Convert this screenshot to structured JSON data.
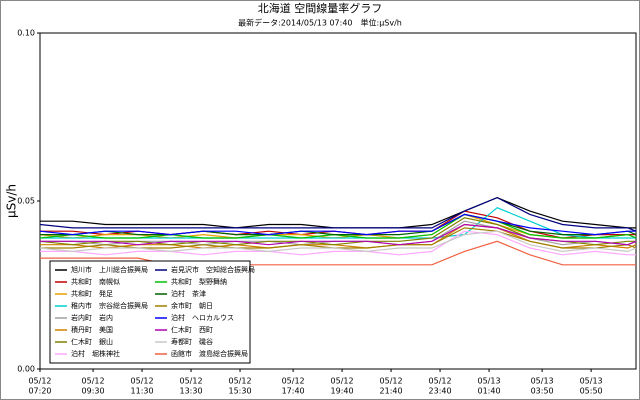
{
  "chart_data": {
    "type": "line",
    "title": "北海道 空間線量率グラフ",
    "subtitle": "最新データ:2014/05/13 07:40　単位:μSv/h",
    "y_label": "μSv/h",
    "x": [
      "05/12 07:20",
      "05/12 08:40",
      "05/12 10:00",
      "05/12 11:20",
      "05/12 12:40",
      "05/12 14:00",
      "05/12 15:20",
      "05/12 16:40",
      "05/12 18:00",
      "05/12 19:20",
      "05/12 20:40",
      "05/12 22:00",
      "05/12 23:20",
      "05/13 00:40",
      "05/13 02:00",
      "05/13 03:20",
      "05/13 04:40",
      "05/13 06:00",
      "05/13 07:20",
      "05/13 07:40"
    ],
    "xticks": [
      {
        "date": "05/12",
        "time": "07:20"
      },
      {
        "date": "05/12",
        "time": "09:30"
      },
      {
        "date": "05/12",
        "time": "11:30"
      },
      {
        "date": "05/12",
        "time": "13:30"
      },
      {
        "date": "05/12",
        "time": "15:30"
      },
      {
        "date": "05/12",
        "time": "17:40"
      },
      {
        "date": "05/12",
        "time": "19:40"
      },
      {
        "date": "05/12",
        "time": "21:40"
      },
      {
        "date": "05/12",
        "time": "23:40"
      },
      {
        "date": "05/13",
        "time": "01:40"
      },
      {
        "date": "05/13",
        "time": "03:50"
      },
      {
        "date": "05/13",
        "time": "05:50"
      }
    ],
    "ylim": [
      0,
      0.1
    ],
    "yticks": [
      {
        "value": 0,
        "label": "0.00"
      },
      {
        "value": 0.05,
        "label": "0.05"
      },
      {
        "value": 0.1,
        "label": "0.10"
      }
    ],
    "legend": "lower left",
    "series": [
      {
        "name": "旭川市　上川総合振興局",
        "color": "#000000",
        "values": [
          0.044,
          0.044,
          0.043,
          0.043,
          0.043,
          0.043,
          0.042,
          0.043,
          0.043,
          0.042,
          0.042,
          0.042,
          0.043,
          0.047,
          0.051,
          0.047,
          0.044,
          0.043,
          0.042,
          0.042
        ]
      },
      {
        "name": "共和町　南幌似",
        "color": "#c00000",
        "values": [
          0.041,
          0.041,
          0.04,
          0.041,
          0.04,
          0.041,
          0.04,
          0.041,
          0.04,
          0.041,
          0.04,
          0.041,
          0.041,
          0.047,
          0.045,
          0.041,
          0.039,
          0.04,
          0.04,
          0.04
        ]
      },
      {
        "name": "共和町　発足",
        "color": "#e8a000",
        "values": [
          0.04,
          0.039,
          0.04,
          0.04,
          0.039,
          0.04,
          0.039,
          0.04,
          0.04,
          0.039,
          0.04,
          0.039,
          0.04,
          0.046,
          0.043,
          0.04,
          0.039,
          0.039,
          0.04,
          0.039
        ]
      },
      {
        "name": "稚内市　宗谷総合振興局",
        "color": "#00d0d0",
        "values": [
          0.039,
          0.039,
          0.039,
          0.039,
          0.039,
          0.039,
          0.039,
          0.039,
          0.039,
          0.039,
          0.039,
          0.039,
          0.039,
          0.04,
          0.048,
          0.044,
          0.04,
          0.039,
          0.039,
          0.039
        ]
      },
      {
        "name": "岩内町　岩内",
        "color": "#a0a0a0",
        "values": [
          0.038,
          0.038,
          0.037,
          0.038,
          0.038,
          0.037,
          0.038,
          0.038,
          0.037,
          0.038,
          0.038,
          0.037,
          0.038,
          0.044,
          0.042,
          0.039,
          0.037,
          0.038,
          0.037,
          0.038
        ]
      },
      {
        "name": "積丹町　美国",
        "color": "#d08000",
        "values": [
          0.037,
          0.037,
          0.036,
          0.037,
          0.037,
          0.036,
          0.037,
          0.036,
          0.037,
          0.037,
          0.036,
          0.037,
          0.037,
          0.043,
          0.042,
          0.038,
          0.036,
          0.037,
          0.036,
          0.037
        ]
      },
      {
        "name": "仁木町　銀山",
        "color": "#808000",
        "values": [
          0.038,
          0.037,
          0.038,
          0.038,
          0.037,
          0.038,
          0.037,
          0.038,
          0.038,
          0.037,
          0.038,
          0.038,
          0.039,
          0.045,
          0.043,
          0.039,
          0.038,
          0.037,
          0.038,
          0.038
        ]
      },
      {
        "name": "泊村　堀株神社",
        "color": "#ffa8ff",
        "values": [
          0.035,
          0.035,
          0.034,
          0.035,
          0.035,
          0.034,
          0.035,
          0.035,
          0.034,
          0.035,
          0.035,
          0.034,
          0.035,
          0.041,
          0.04,
          0.036,
          0.034,
          0.035,
          0.034,
          0.034
        ]
      },
      {
        "name": "岩見沢市　空知総合振興局",
        "color": "#000080",
        "values": [
          0.043,
          0.042,
          0.042,
          0.042,
          0.042,
          0.042,
          0.042,
          0.042,
          0.042,
          0.042,
          0.042,
          0.042,
          0.042,
          0.047,
          0.051,
          0.046,
          0.043,
          0.042,
          0.042,
          0.041
        ]
      },
      {
        "name": "共和町　梨野舞納",
        "color": "#00c000",
        "values": [
          0.039,
          0.04,
          0.039,
          0.039,
          0.04,
          0.039,
          0.039,
          0.04,
          0.039,
          0.04,
          0.039,
          0.039,
          0.04,
          0.046,
          0.044,
          0.04,
          0.039,
          0.039,
          0.04,
          0.039
        ]
      },
      {
        "name": "泊村　茶津",
        "color": "#006000",
        "values": [
          0.04,
          0.04,
          0.041,
          0.04,
          0.04,
          0.041,
          0.04,
          0.04,
          0.041,
          0.04,
          0.04,
          0.04,
          0.041,
          0.046,
          0.044,
          0.041,
          0.04,
          0.04,
          0.041,
          0.04
        ]
      },
      {
        "name": "余市町　朝日",
        "color": "#a08000",
        "values": [
          0.036,
          0.036,
          0.037,
          0.036,
          0.036,
          0.037,
          0.036,
          0.036,
          0.037,
          0.036,
          0.036,
          0.037,
          0.037,
          0.042,
          0.041,
          0.038,
          0.036,
          0.036,
          0.037,
          0.036
        ]
      },
      {
        "name": "泊村　ヘロカルウス",
        "color": "#0000ff",
        "values": [
          0.041,
          0.04,
          0.041,
          0.041,
          0.04,
          0.041,
          0.041,
          0.04,
          0.041,
          0.041,
          0.04,
          0.041,
          0.041,
          0.046,
          0.044,
          0.042,
          0.041,
          0.04,
          0.041,
          0.041
        ]
      },
      {
        "name": "仁木町　西町",
        "color": "#b000b0",
        "values": [
          0.038,
          0.038,
          0.038,
          0.037,
          0.038,
          0.038,
          0.038,
          0.037,
          0.038,
          0.038,
          0.038,
          0.037,
          0.038,
          0.043,
          0.042,
          0.039,
          0.038,
          0.038,
          0.037,
          0.038
        ]
      },
      {
        "name": "寿都町　磯谷",
        "color": "#c8c8c8",
        "values": [
          0.036,
          0.035,
          0.036,
          0.036,
          0.035,
          0.036,
          0.036,
          0.035,
          0.036,
          0.036,
          0.035,
          0.036,
          0.036,
          0.04,
          0.041,
          0.037,
          0.035,
          0.036,
          0.035,
          0.036
        ]
      },
      {
        "name": "函館市　渡島総合振興局",
        "color": "#f06040",
        "values": [
          0.033,
          0.033,
          0.033,
          0.033,
          0.031,
          0.031,
          0.031,
          0.031,
          0.031,
          0.031,
          0.031,
          0.031,
          0.031,
          0.035,
          0.038,
          0.034,
          0.031,
          0.031,
          0.031,
          0.031
        ]
      }
    ]
  }
}
